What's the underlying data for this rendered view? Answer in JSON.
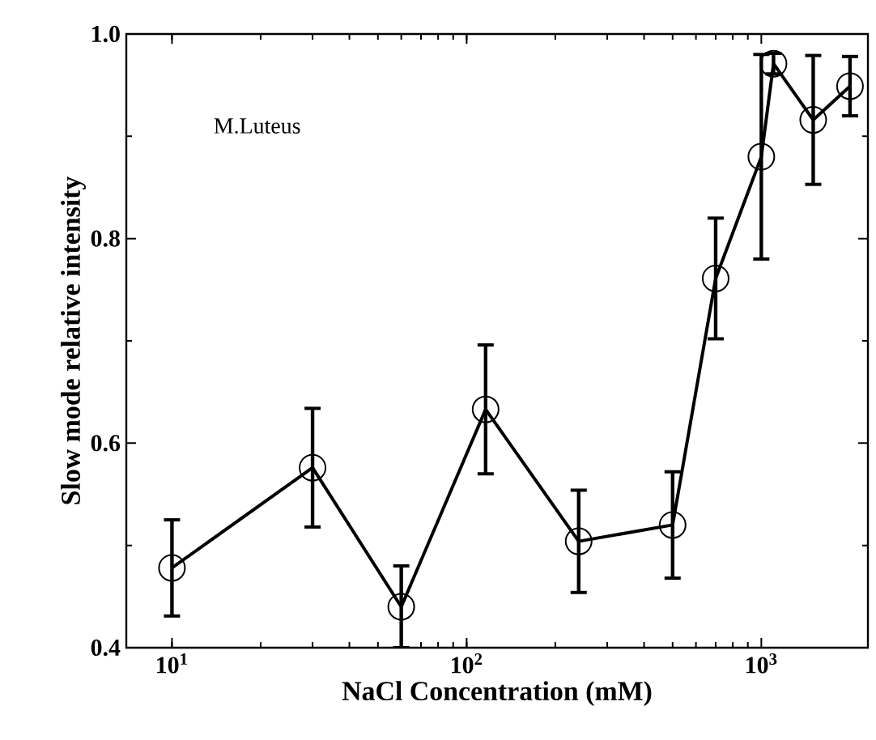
{
  "chart_data": {
    "type": "line",
    "xlabel": "NaCl Concentration (mM)",
    "ylabel": "Slow  mode relative intensity",
    "annotations": [
      "M.Luteus"
    ],
    "x": [
      10,
      30,
      60,
      116,
      240,
      500,
      700,
      1000,
      1100,
      1500,
      2000
    ],
    "values": [
      0.478,
      0.576,
      0.44,
      0.633,
      0.504,
      0.52,
      0.761,
      0.88,
      0.971,
      0.916,
      0.949
    ],
    "errors": [
      0.047,
      0.058,
      0.04,
      0.063,
      0.05,
      0.052,
      0.059,
      0.1,
      0.01,
      0.063,
      0.029
    ],
    "color": "#000000",
    "marker": "circle",
    "line_style": "solid",
    "log": "x",
    "xlim": [
      7,
      2300
    ],
    "ylim": [
      0.4,
      1.0
    ],
    "xticks": [
      {
        "value": 10,
        "label": "10$^{1}$"
      },
      {
        "value": 100,
        "label": "10$^{2}$"
      },
      {
        "value": 1000,
        "label": "10$^{3}$"
      }
    ],
    "yticks": [
      0.4,
      0.6,
      0.8,
      {
        "value": 1.0,
        "label": "1.0"
      }
    ]
  }
}
